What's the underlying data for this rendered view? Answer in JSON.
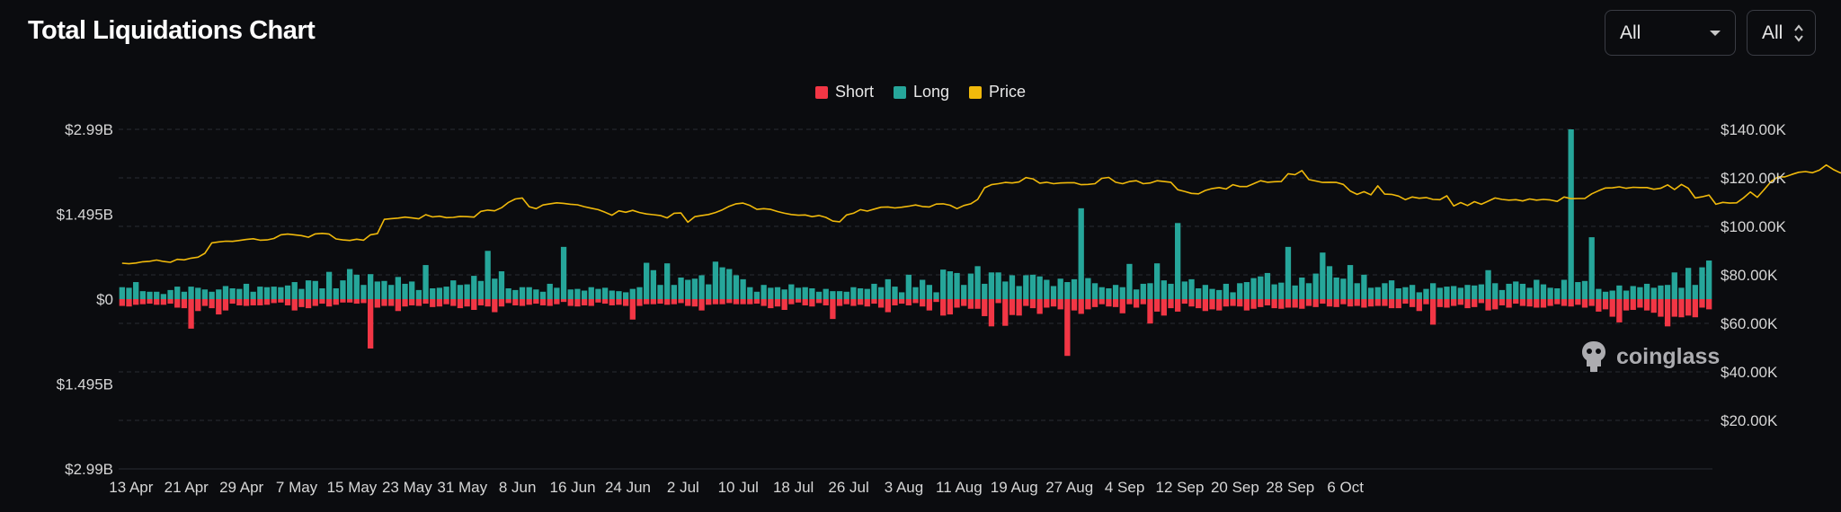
{
  "header": {
    "title": "Total Liquidations Chart",
    "select_symbol": "All",
    "select_exchange": "All"
  },
  "legend": [
    {
      "label": "Short",
      "color": "#f23645"
    },
    {
      "label": "Long",
      "color": "#26a69a"
    },
    {
      "label": "Price",
      "color": "#f0b90b"
    }
  ],
  "watermark": "coinglass",
  "chart_data": {
    "type": "bar",
    "title": "Total Liquidations Chart",
    "left_axis": {
      "tick_labels": [
        "$2.99B",
        "$1.495B",
        "$0",
        "$1.495B",
        "$2.99B"
      ],
      "tick_values": [
        2.99,
        1.495,
        0,
        -1.495,
        -2.99
      ],
      "range": [
        -2.99,
        2.99
      ],
      "unit": "USD billions"
    },
    "right_axis": {
      "tick_labels": [
        "$140.00K",
        "$120.00K",
        "$100.00K",
        "$80.00K",
        "$60.00K",
        "$40.00K",
        "$20.00K"
      ],
      "tick_values": [
        140000,
        120000,
        100000,
        80000,
        60000,
        40000,
        20000
      ],
      "range": [
        0,
        140000
      ]
    },
    "x_tick_labels": [
      "13 Apr",
      "21 Apr",
      "29 Apr",
      "7 May",
      "15 May",
      "23 May",
      "31 May",
      "8 Jun",
      "16 Jun",
      "24 Jun",
      "2 Jul",
      "10 Jul",
      "18 Jul",
      "26 Jul",
      "3 Aug",
      "11 Aug",
      "19 Aug",
      "27 Aug",
      "4 Sep",
      "12 Sep",
      "20 Sep",
      "28 Sep",
      "6 Oct"
    ],
    "grid": true,
    "legend_position": "top-center",
    "series": [
      {
        "name": "Long",
        "color": "#26a69a",
        "unit": "USD billions",
        "values": [
          0.21,
          0.2,
          0.3,
          0.14,
          0.13,
          0.13,
          0.09,
          0.16,
          0.22,
          0.13,
          0.22,
          0.2,
          0.17,
          0.13,
          0.17,
          0.23,
          0.19,
          0.18,
          0.27,
          0.13,
          0.22,
          0.21,
          0.22,
          0.21,
          0.24,
          0.3,
          0.18,
          0.33,
          0.32,
          0.19,
          0.48,
          0.19,
          0.33,
          0.53,
          0.43,
          0.25,
          0.44,
          0.31,
          0.32,
          0.25,
          0.39,
          0.27,
          0.31,
          0.16,
          0.6,
          0.19,
          0.2,
          0.22,
          0.33,
          0.25,
          0.26,
          0.41,
          0.32,
          0.85,
          0.36,
          0.49,
          0.19,
          0.16,
          0.21,
          0.21,
          0.17,
          0.13,
          0.27,
          0.2,
          0.92,
          0.17,
          0.18,
          0.15,
          0.21,
          0.18,
          0.2,
          0.15,
          0.14,
          0.12,
          0.18,
          0.21,
          0.64,
          0.51,
          0.25,
          0.63,
          0.25,
          0.38,
          0.34,
          0.36,
          0.42,
          0.26,
          0.66,
          0.56,
          0.53,
          0.42,
          0.35,
          0.21,
          0.13,
          0.25,
          0.2,
          0.21,
          0.17,
          0.26,
          0.2,
          0.21,
          0.19,
          0.13,
          0.18,
          0.14,
          0.14,
          0.13,
          0.21,
          0.19,
          0.18,
          0.27,
          0.21,
          0.35,
          0.22,
          0.12,
          0.43,
          0.21,
          0.34,
          0.25,
          0.12,
          0.52,
          0.49,
          0.46,
          0.25,
          0.45,
          0.58,
          0.27,
          0.47,
          0.47,
          0.31,
          0.42,
          0.23,
          0.42,
          0.43,
          0.4,
          0.34,
          0.23,
          0.36,
          0.3,
          0.35,
          1.6,
          0.37,
          0.28,
          0.21,
          0.19,
          0.25,
          0.21,
          0.62,
          0.17,
          0.27,
          0.28,
          0.63,
          0.33,
          0.27,
          1.34,
          0.31,
          0.35,
          0.19,
          0.25,
          0.18,
          0.16,
          0.27,
          0.12,
          0.28,
          0.3,
          0.37,
          0.4,
          0.46,
          0.26,
          0.29,
          0.92,
          0.24,
          0.38,
          0.28,
          0.45,
          0.82,
          0.58,
          0.38,
          0.36,
          0.6,
          0.28,
          0.43,
          0.2,
          0.21,
          0.28,
          0.33,
          0.19,
          0.21,
          0.25,
          0.12,
          0.18,
          0.28,
          0.2,
          0.22,
          0.23,
          0.2,
          0.25,
          0.24,
          0.26,
          0.51,
          0.28,
          0.16,
          0.27,
          0.31,
          0.27,
          0.2,
          0.34,
          0.26,
          0.2,
          0.19,
          0.34,
          2.99,
          0.3,
          0.32,
          1.09,
          0.18,
          0.13,
          0.15,
          0.24,
          0.15,
          0.23,
          0.21,
          0.27,
          0.2,
          0.24,
          0.25,
          0.47,
          0.2,
          0.55,
          0.25,
          0.56,
          0.68
        ]
      },
      {
        "name": "Short",
        "color": "#f23645",
        "unit": "USD billions",
        "values": [
          0.12,
          0.13,
          0.1,
          0.09,
          0.08,
          0.1,
          0.1,
          0.08,
          0.15,
          0.16,
          0.52,
          0.21,
          0.12,
          0.16,
          0.27,
          0.2,
          0.08,
          0.11,
          0.12,
          0.11,
          0.11,
          0.1,
          0.07,
          0.06,
          0.11,
          0.2,
          0.14,
          0.16,
          0.12,
          0.08,
          0.13,
          0.1,
          0.06,
          0.06,
          0.08,
          0.07,
          0.87,
          0.15,
          0.12,
          0.12,
          0.21,
          0.13,
          0.11,
          0.12,
          0.08,
          0.14,
          0.13,
          0.09,
          0.12,
          0.16,
          0.13,
          0.19,
          0.11,
          0.13,
          0.23,
          0.13,
          0.07,
          0.11,
          0.12,
          0.1,
          0.08,
          0.11,
          0.12,
          0.09,
          0.05,
          0.12,
          0.13,
          0.11,
          0.12,
          0.06,
          0.08,
          0.11,
          0.1,
          0.12,
          0.36,
          0.12,
          0.09,
          0.09,
          0.08,
          0.1,
          0.09,
          0.07,
          0.12,
          0.13,
          0.2,
          0.1,
          0.09,
          0.09,
          0.07,
          0.09,
          0.09,
          0.09,
          0.08,
          0.12,
          0.16,
          0.13,
          0.19,
          0.09,
          0.06,
          0.11,
          0.13,
          0.07,
          0.11,
          0.35,
          0.12,
          0.09,
          0.12,
          0.1,
          0.13,
          0.08,
          0.15,
          0.23,
          0.11,
          0.08,
          0.11,
          0.07,
          0.13,
          0.2,
          0.05,
          0.29,
          0.27,
          0.15,
          0.12,
          0.17,
          0.17,
          0.3,
          0.48,
          0.07,
          0.47,
          0.28,
          0.29,
          0.12,
          0.16,
          0.26,
          0.15,
          0.13,
          0.18,
          1.0,
          0.2,
          0.26,
          0.18,
          0.14,
          0.09,
          0.13,
          0.14,
          0.25,
          0.09,
          0.15,
          0.09,
          0.43,
          0.22,
          0.29,
          0.16,
          0.22,
          0.08,
          0.13,
          0.16,
          0.21,
          0.18,
          0.2,
          0.13,
          0.12,
          0.13,
          0.2,
          0.17,
          0.14,
          0.11,
          0.16,
          0.17,
          0.15,
          0.15,
          0.17,
          0.12,
          0.14,
          0.08,
          0.13,
          0.14,
          0.09,
          0.13,
          0.12,
          0.15,
          0.13,
          0.12,
          0.12,
          0.16,
          0.16,
          0.08,
          0.14,
          0.21,
          0.09,
          0.45,
          0.14,
          0.15,
          0.12,
          0.1,
          0.16,
          0.14,
          0.07,
          0.2,
          0.18,
          0.11,
          0.15,
          0.08,
          0.12,
          0.13,
          0.15,
          0.15,
          0.12,
          0.09,
          0.12,
          0.13,
          0.1,
          0.15,
          0.12,
          0.22,
          0.18,
          0.31,
          0.41,
          0.2,
          0.19,
          0.15,
          0.2,
          0.24,
          0.31,
          0.48,
          0.31,
          0.32,
          0.29,
          0.32,
          0.15,
          0.18,
          0.32,
          0.12,
          0.17
        ]
      },
      {
        "name": "Price",
        "color": "#f0b90b",
        "unit": "USD",
        "axis": "right",
        "values": [
          84800,
          84600,
          84900,
          85400,
          85600,
          86100,
          85500,
          85200,
          86400,
          86200,
          86900,
          87300,
          88900,
          93200,
          93600,
          93900,
          93800,
          94200,
          94600,
          94900,
          94300,
          94400,
          95000,
          96500,
          96800,
          96500,
          96200,
          95500,
          96900,
          97100,
          96800,
          94800,
          94400,
          94200,
          94700,
          94300,
          96500,
          97000,
          102900,
          103200,
          103400,
          103800,
          103500,
          103100,
          104800,
          103900,
          104200,
          103600,
          103700,
          104100,
          104000,
          103800,
          106200,
          106700,
          106400,
          107700,
          109900,
          111300,
          111700,
          108100,
          107300,
          108800,
          109300,
          109700,
          109500,
          109100,
          108900,
          108100,
          107500,
          106900,
          105800,
          104600,
          106400,
          105800,
          106600,
          105700,
          105100,
          104800,
          104500,
          103500,
          105400,
          105500,
          101700,
          104000,
          104500,
          104900,
          105700,
          106800,
          108300,
          109300,
          109600,
          108600,
          107000,
          107300,
          107000,
          106100,
          105400,
          104900,
          104600,
          104700,
          104000,
          104500,
          103700,
          102200,
          101900,
          104700,
          105400,
          106900,
          106300,
          107100,
          107900,
          108000,
          107600,
          107900,
          108300,
          108800,
          108200,
          108000,
          109200,
          109300,
          108700,
          107300,
          108600,
          109300,
          111100,
          115900,
          117200,
          117600,
          118100,
          117900,
          118300,
          120100,
          119600,
          117800,
          118200,
          117600,
          117900,
          118000,
          118000,
          117200,
          117300,
          117600,
          119800,
          120200,
          118200,
          117600,
          118500,
          118800,
          117600,
          117900,
          118800,
          118500,
          118200,
          115100,
          114400,
          113600,
          113400,
          114800,
          115600,
          116000,
          115400,
          117200,
          116400,
          116400,
          117600,
          118800,
          118200,
          118400,
          118500,
          121700,
          121300,
          123000,
          119300,
          118700,
          118100,
          118200,
          118100,
          117300,
          114600,
          113200,
          114300,
          113000,
          116700,
          113300,
          113200,
          112500,
          111000,
          112100,
          111600,
          111900,
          111100,
          111000,
          112600,
          108400,
          109800,
          108600,
          110200,
          109100,
          110400,
          111700,
          111100,
          110800,
          111000,
          110500,
          111300,
          110800,
          111100,
          110900,
          110300,
          112100,
          111400,
          111500,
          111500,
          113400,
          114700,
          115800,
          115900,
          116300,
          115700,
          116100,
          116000,
          116000,
          115300,
          115700,
          117100,
          115200,
          117300,
          115700,
          111700,
          112200,
          112900,
          109100,
          109900,
          109600,
          109700,
          111700,
          114200,
          112000,
          115200,
          118500,
          120400,
          120400,
          121400,
          122300,
          122600,
          122100,
          123200,
          125300,
          123500,
          122100,
          121700,
          123800,
          121300,
          120000,
          117700
        ]
      }
    ]
  }
}
